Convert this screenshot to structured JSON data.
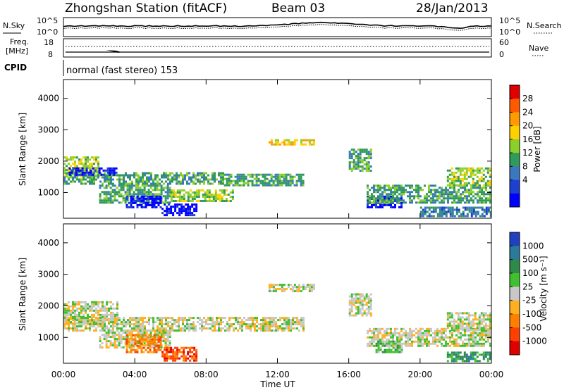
{
  "header": {
    "station": "Zhongshan Station (fitACF)",
    "beam": "Beam 03",
    "date": "28/Jan/2013"
  },
  "summary_panel": {
    "left_label": "N.Sky",
    "right_label": "N.Search",
    "left_ticks": [
      "10^5",
      "10^0"
    ],
    "right_ticks": [
      "10^5",
      "10^0"
    ],
    "freq_label": "Freq.",
    "freq_unit": "[MHz]",
    "freq_ticks": [
      "18",
      "8"
    ],
    "nave_label": "Nave",
    "nave_ticks": [
      "60",
      "0"
    ],
    "cpid_label": "CPID",
    "mode_text": "normal (fast stereo) 153"
  },
  "chart_data": [
    {
      "type": "heatmap",
      "title": "",
      "xlabel": "Time UT",
      "ylabel": "Slant Range [km]",
      "x_ticks": [
        "00:00",
        "04:00",
        "08:00",
        "12:00",
        "16:00",
        "20:00",
        "00:00"
      ],
      "xlim_hours": [
        0,
        24
      ],
      "y_ticks": [
        1000,
        2000,
        3000,
        4000
      ],
      "ylim": [
        180,
        4600
      ],
      "colorbar_label": "Power [dB]",
      "colorbar_ticks": [
        "28",
        "24",
        "20",
        "16",
        "12",
        "8",
        "4"
      ],
      "colorbar_colors": [
        "#e00000",
        "#ff5a00",
        "#ff9a00",
        "#ffd000",
        "#8ccf2a",
        "#2f9a5a",
        "#3a78c0",
        "#1e40d0",
        "#0000ff"
      ],
      "regions": [
        {
          "t0": 0.0,
          "t1": 2.0,
          "r0": 1500,
          "r1": 2150,
          "level": 4
        },
        {
          "t0": 0.0,
          "t1": 9.0,
          "r0": 1250,
          "r1": 1650,
          "level": 5
        },
        {
          "t0": 0.3,
          "t1": 3.0,
          "r0": 1550,
          "r1": 1800,
          "level": 8
        },
        {
          "t0": 2.0,
          "t1": 6.0,
          "r0": 700,
          "r1": 1250,
          "level": 5
        },
        {
          "t0": 3.5,
          "t1": 5.5,
          "r0": 500,
          "r1": 900,
          "level": 8
        },
        {
          "t0": 5.5,
          "t1": 7.5,
          "r0": 250,
          "r1": 650,
          "level": 8
        },
        {
          "t0": 6.0,
          "t1": 9.5,
          "r0": 700,
          "r1": 1100,
          "level": 4
        },
        {
          "t0": 9.0,
          "t1": 13.5,
          "r0": 1250,
          "r1": 1600,
          "level": 5
        },
        {
          "t0": 11.5,
          "t1": 14.0,
          "r0": 2500,
          "r1": 2700,
          "level": 3
        },
        {
          "t0": 16.0,
          "t1": 17.3,
          "r0": 1700,
          "r1": 2400,
          "level": 5
        },
        {
          "t0": 17.0,
          "t1": 19.0,
          "r0": 500,
          "r1": 900,
          "level": 8
        },
        {
          "t0": 17.0,
          "t1": 24.0,
          "r0": 700,
          "r1": 1250,
          "level": 5
        },
        {
          "t0": 20.0,
          "t1": 24.0,
          "r0": 250,
          "r1": 550,
          "level": 6
        },
        {
          "t0": 21.5,
          "t1": 24.0,
          "r0": 1250,
          "r1": 1800,
          "level": 4
        }
      ]
    },
    {
      "type": "heatmap",
      "title": "",
      "xlabel": "Time UT",
      "ylabel": "Slant Range [km]",
      "x_ticks": [
        "00:00",
        "04:00",
        "08:00",
        "12:00",
        "16:00",
        "20:00",
        "00:00"
      ],
      "xlim_hours": [
        0,
        24
      ],
      "y_ticks": [
        1000,
        2000,
        3000,
        4000
      ],
      "ylim": [
        180,
        4600
      ],
      "colorbar_label": "Velocity [m s⁻¹]",
      "colorbar_ticks": [
        "1000",
        "500",
        "100",
        "25",
        "-25",
        "-100",
        "-500",
        "-1000"
      ],
      "colorbar_colors": [
        "#2040c0",
        "#2a7a9a",
        "#2f8a4a",
        "#40c030",
        "#c8c8c8",
        "#ffb020",
        "#ff8000",
        "#ff4000",
        "#e00000"
      ],
      "regions": [
        {
          "t0": 0.0,
          "t1": 3.0,
          "r0": 1450,
          "r1": 2150,
          "level": 4
        },
        {
          "t0": 0.0,
          "t1": 13.5,
          "r0": 1200,
          "r1": 1650,
          "level": 4
        },
        {
          "t0": 2.0,
          "t1": 6.0,
          "r0": 700,
          "r1": 1250,
          "level": 4
        },
        {
          "t0": 3.5,
          "t1": 5.5,
          "r0": 500,
          "r1": 1100,
          "level": 6
        },
        {
          "t0": 5.5,
          "t1": 7.5,
          "r0": 250,
          "r1": 700,
          "level": 7
        },
        {
          "t0": 11.5,
          "t1": 14.0,
          "r0": 2450,
          "r1": 2700,
          "level": 4
        },
        {
          "t0": 16.0,
          "t1": 17.3,
          "r0": 1700,
          "r1": 2400,
          "level": 4
        },
        {
          "t0": 17.0,
          "t1": 24.0,
          "r0": 700,
          "r1": 1300,
          "level": 4
        },
        {
          "t0": 17.5,
          "t1": 19.0,
          "r0": 500,
          "r1": 900,
          "level": 3
        },
        {
          "t0": 21.5,
          "t1": 24.0,
          "r0": 250,
          "r1": 550,
          "level": 2
        },
        {
          "t0": 21.5,
          "t1": 24.0,
          "r0": 1250,
          "r1": 1800,
          "level": 4
        }
      ]
    }
  ]
}
